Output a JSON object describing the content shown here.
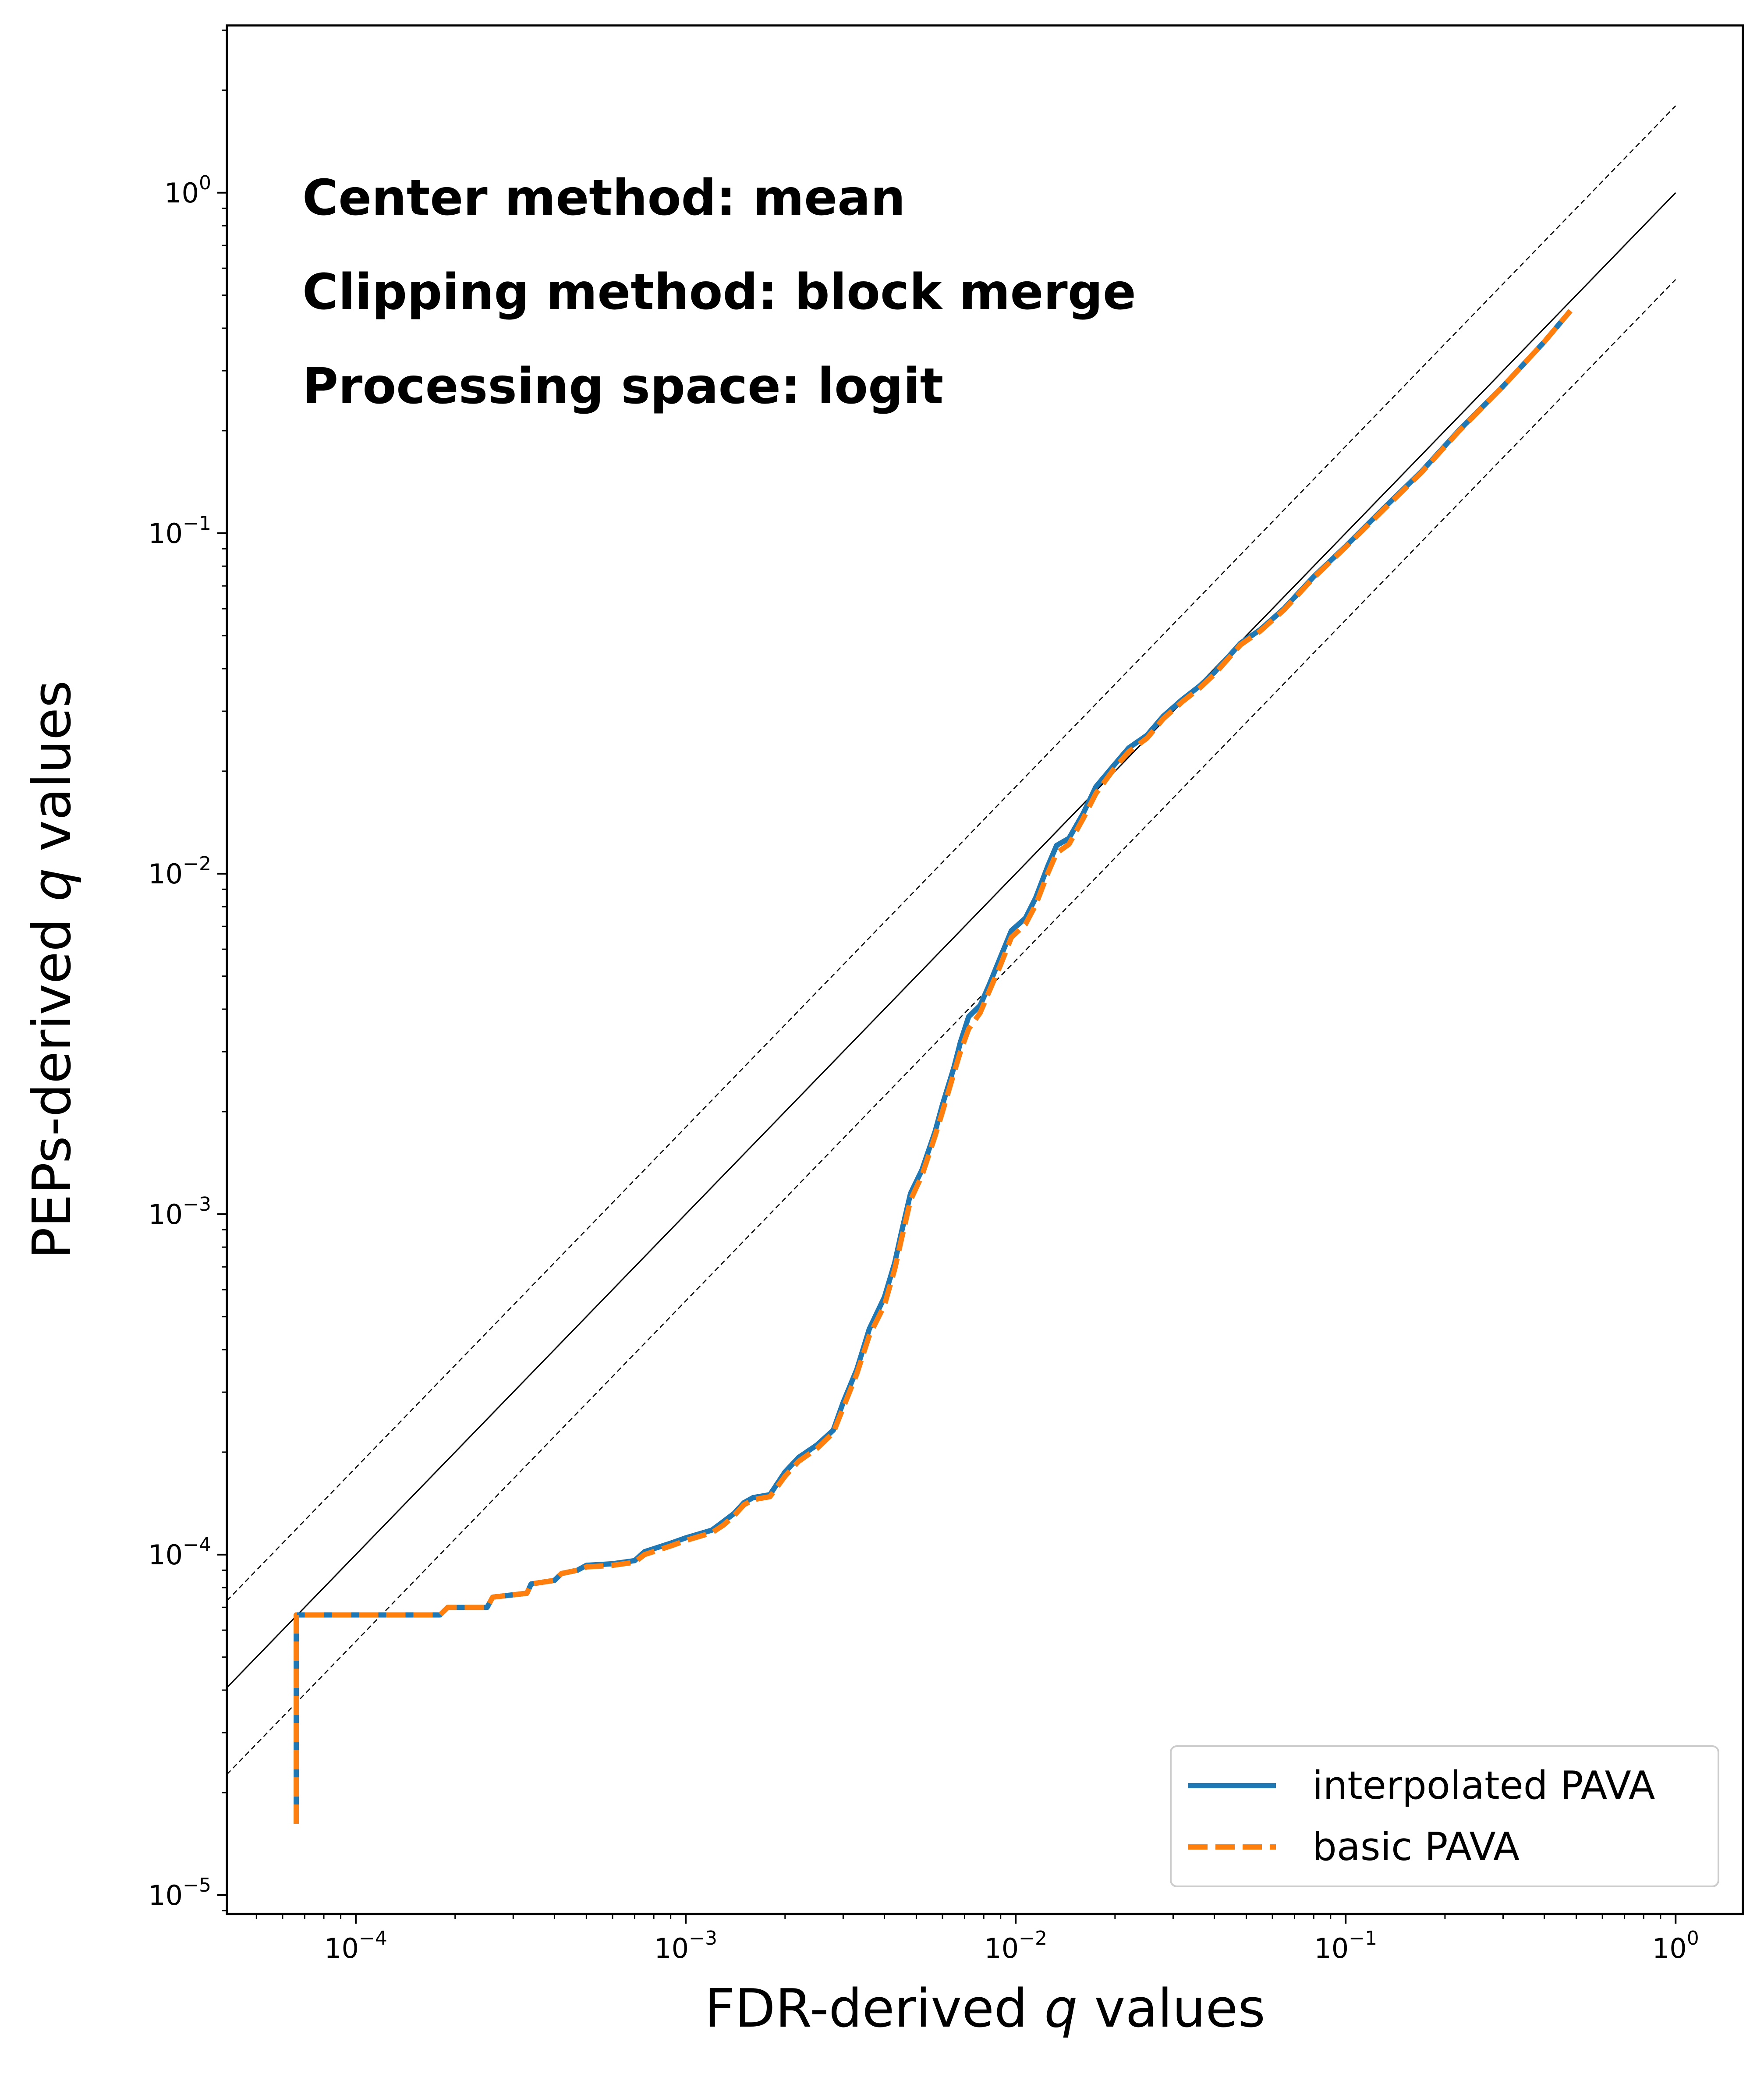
{
  "chart_data": {
    "type": "line",
    "xlabel": {
      "prefix": "FDR-derived ",
      "var": "q",
      "suffix": " values"
    },
    "ylabel": {
      "prefix": "PEPs-derived ",
      "var": "q",
      "suffix": " values"
    },
    "xscale": "log",
    "yscale": "log",
    "xlim": [
      4.07e-05,
      1.6
    ],
    "ylim": [
      8.8e-06,
      3.1
    ],
    "grid": false,
    "x_ticks": [
      {
        "value": 0.0001,
        "base": "10",
        "exp": "−4"
      },
      {
        "value": 0.001,
        "base": "10",
        "exp": "−3"
      },
      {
        "value": 0.01,
        "base": "10",
        "exp": "−2"
      },
      {
        "value": 0.1,
        "base": "10",
        "exp": "−1"
      },
      {
        "value": 1,
        "base": "10",
        "exp": "0"
      }
    ],
    "y_ticks": [
      {
        "value": 1e-05,
        "base": "10",
        "exp": "−5"
      },
      {
        "value": 0.0001,
        "base": "10",
        "exp": "−4"
      },
      {
        "value": 0.001,
        "base": "10",
        "exp": "−3"
      },
      {
        "value": 0.01,
        "base": "10",
        "exp": "−2"
      },
      {
        "value": 0.1,
        "base": "10",
        "exp": "−1"
      },
      {
        "value": 1,
        "base": "10",
        "exp": "0"
      }
    ],
    "annotations": [
      "Center method: mean",
      "Clipping method: block merge",
      "Processing space: logit"
    ],
    "reference_lines": [
      {
        "style": "solid",
        "color": "#000000",
        "factor": 1.0
      },
      {
        "style": "dashed",
        "color": "#000000",
        "factor": 1.8
      },
      {
        "style": "dashed",
        "color": "#000000",
        "factor": 0.556
      }
    ],
    "legend": {
      "position": "lower-right"
    },
    "series": [
      {
        "name": "interpolated PAVA",
        "color": "#1f77b4",
        "style": "solid",
        "points": [
          [
            6.6e-05,
            1.62e-05
          ],
          [
            6.6e-05,
            6.65e-05
          ],
          [
            0.00018,
            6.65e-05
          ],
          [
            0.00019,
            7e-05
          ],
          [
            0.00025,
            7e-05
          ],
          [
            0.00026,
            7.5e-05
          ],
          [
            0.00033,
            7.7e-05
          ],
          [
            0.00034,
            8.2e-05
          ],
          [
            0.0004,
            8.4e-05
          ],
          [
            0.00042,
            8.8e-05
          ],
          [
            0.00047,
            9e-05
          ],
          [
            0.0005,
            9.3e-05
          ],
          [
            0.0006,
            9.4e-05
          ],
          [
            0.0007,
            9.6e-05
          ],
          [
            0.00075,
            0.000102
          ],
          [
            0.0009,
            0.000108
          ],
          [
            0.001,
            0.000112
          ],
          [
            0.0012,
            0.000118
          ],
          [
            0.0013,
            0.000125
          ],
          [
            0.0014,
            0.000132
          ],
          [
            0.0015,
            0.000142
          ],
          [
            0.0016,
            0.000147
          ],
          [
            0.0018,
            0.00015
          ],
          [
            0.002,
            0.000175
          ],
          [
            0.0022,
            0.000193
          ],
          [
            0.0025,
            0.00021
          ],
          [
            0.0028,
            0.000232
          ],
          [
            0.003,
            0.00028
          ],
          [
            0.0033,
            0.00035
          ],
          [
            0.0036,
            0.00046
          ],
          [
            0.004,
            0.00057
          ],
          [
            0.0043,
            0.00072
          ],
          [
            0.0045,
            0.00088
          ],
          [
            0.0048,
            0.00115
          ],
          [
            0.0052,
            0.00135
          ],
          [
            0.0057,
            0.00175
          ],
          [
            0.006,
            0.0021
          ],
          [
            0.0065,
            0.0027
          ],
          [
            0.0068,
            0.0032
          ],
          [
            0.0072,
            0.0038
          ],
          [
            0.0078,
            0.0041
          ],
          [
            0.0083,
            0.0047
          ],
          [
            0.009,
            0.0057
          ],
          [
            0.0097,
            0.0068
          ],
          [
            0.0107,
            0.0074
          ],
          [
            0.0115,
            0.0085
          ],
          [
            0.0125,
            0.0105
          ],
          [
            0.0133,
            0.0121
          ],
          [
            0.0145,
            0.0127
          ],
          [
            0.016,
            0.015
          ],
          [
            0.0175,
            0.018
          ],
          [
            0.02,
            0.021
          ],
          [
            0.022,
            0.0234
          ],
          [
            0.025,
            0.0255
          ],
          [
            0.028,
            0.029
          ],
          [
            0.032,
            0.0325
          ],
          [
            0.036,
            0.0355
          ],
          [
            0.04,
            0.039
          ],
          [
            0.048,
            0.0475
          ],
          [
            0.055,
            0.052
          ],
          [
            0.065,
            0.06
          ],
          [
            0.08,
            0.0745
          ],
          [
            0.1,
            0.0915
          ],
          [
            0.13,
            0.118
          ],
          [
            0.17,
            0.152
          ],
          [
            0.22,
            0.2
          ],
          [
            0.3,
            0.27
          ],
          [
            0.4,
            0.365
          ],
          [
            0.48,
            0.45
          ]
        ]
      },
      {
        "name": "basic PAVA",
        "color": "#ff7f0e",
        "style": "dashed",
        "points": [
          [
            6.6e-05,
            1.62e-05
          ],
          [
            6.6e-05,
            6.65e-05
          ],
          [
            0.00018,
            6.65e-05
          ],
          [
            0.00019,
            7e-05
          ],
          [
            0.00025,
            7e-05
          ],
          [
            0.00026,
            7.5e-05
          ],
          [
            0.00033,
            7.7e-05
          ],
          [
            0.00034,
            8.2e-05
          ],
          [
            0.0004,
            8.4e-05
          ],
          [
            0.00042,
            8.8e-05
          ],
          [
            0.00047,
            9e-05
          ],
          [
            0.0005,
            9.2e-05
          ],
          [
            0.0006,
            9.3e-05
          ],
          [
            0.0007,
            9.5e-05
          ],
          [
            0.00075,
            0.0001
          ],
          [
            0.0009,
            0.000106
          ],
          [
            0.001,
            0.00011
          ],
          [
            0.0012,
            0.000116
          ],
          [
            0.0013,
            0.000122
          ],
          [
            0.0014,
            0.00013
          ],
          [
            0.0015,
            0.00014
          ],
          [
            0.0016,
            0.000145
          ],
          [
            0.0018,
            0.000148
          ],
          [
            0.002,
            0.00017
          ],
          [
            0.0022,
            0.000188
          ],
          [
            0.0025,
            0.000205
          ],
          [
            0.0028,
            0.000228
          ],
          [
            0.003,
            0.00027
          ],
          [
            0.0033,
            0.00034
          ],
          [
            0.0036,
            0.00044
          ],
          [
            0.004,
            0.00054
          ],
          [
            0.0043,
            0.00069
          ],
          [
            0.0045,
            0.00084
          ],
          [
            0.0048,
            0.0011
          ],
          [
            0.0052,
            0.0013
          ],
          [
            0.0057,
            0.0017
          ],
          [
            0.006,
            0.002
          ],
          [
            0.0065,
            0.0026
          ],
          [
            0.0068,
            0.003
          ],
          [
            0.0072,
            0.0035
          ],
          [
            0.0078,
            0.0039
          ],
          [
            0.0083,
            0.0045
          ],
          [
            0.009,
            0.0054
          ],
          [
            0.0097,
            0.0065
          ],
          [
            0.0107,
            0.0071
          ],
          [
            0.0115,
            0.0081
          ],
          [
            0.0125,
            0.01
          ],
          [
            0.0133,
            0.0115
          ],
          [
            0.0145,
            0.0122
          ],
          [
            0.016,
            0.0145
          ],
          [
            0.0175,
            0.0172
          ],
          [
            0.02,
            0.0205
          ],
          [
            0.022,
            0.0228
          ],
          [
            0.025,
            0.025
          ],
          [
            0.028,
            0.0285
          ],
          [
            0.032,
            0.032
          ],
          [
            0.036,
            0.035
          ],
          [
            0.04,
            0.0385
          ],
          [
            0.048,
            0.047
          ],
          [
            0.055,
            0.0515
          ],
          [
            0.065,
            0.0595
          ],
          [
            0.08,
            0.074
          ],
          [
            0.1,
            0.091
          ],
          [
            0.13,
            0.117
          ],
          [
            0.17,
            0.151
          ],
          [
            0.22,
            0.199
          ],
          [
            0.3,
            0.27
          ],
          [
            0.4,
            0.365
          ],
          [
            0.48,
            0.45
          ]
        ]
      }
    ]
  }
}
